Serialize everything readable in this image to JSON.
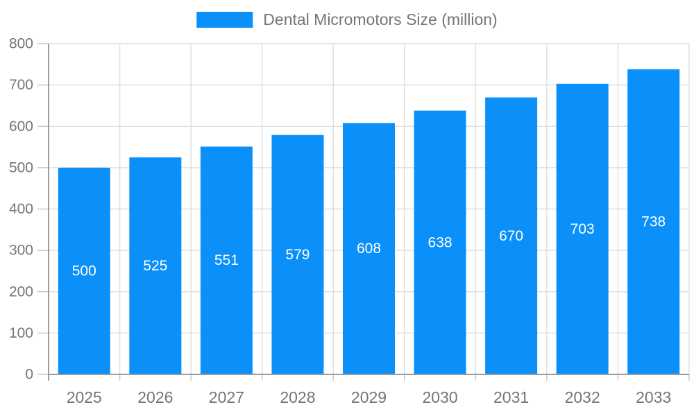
{
  "chart_data": {
    "type": "bar",
    "title": "Dental Micromotors Size (million)",
    "categories": [
      "2025",
      "2026",
      "2027",
      "2028",
      "2029",
      "2030",
      "2031",
      "2032",
      "2033"
    ],
    "values": [
      500,
      525,
      551,
      579,
      608,
      638,
      670,
      703,
      738
    ],
    "xlabel": "",
    "ylabel": "",
    "ylim": [
      0,
      800
    ],
    "ytick_step": 100,
    "yticks": [
      0,
      100,
      200,
      300,
      400,
      500,
      600,
      700,
      800
    ],
    "grid": true,
    "legend_position": "top-center",
    "bar_label_position": "inside-center",
    "colors": {
      "bar": "#0b90fa",
      "bar_label": "#ffffff",
      "axis_line": "#9b9b9b",
      "grid_line": "#e0e0e0",
      "tick_mark": "#c9c9c9",
      "axis_text": "#757575",
      "legend_text": "#757575",
      "background": "#ffffff"
    }
  }
}
